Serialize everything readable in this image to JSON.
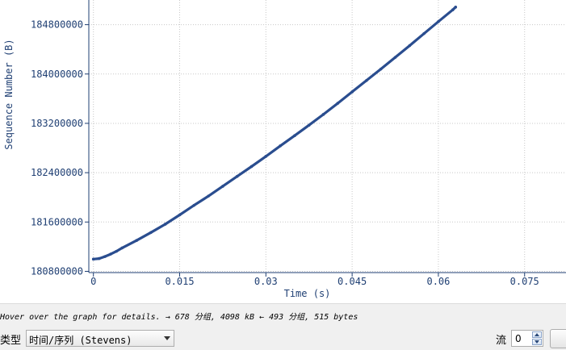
{
  "chart_data": {
    "type": "scatter",
    "xlabel": "Time (s)",
    "ylabel": "Sequence Number (B)",
    "x_ticks": [
      0,
      0.015,
      0.03,
      0.045,
      0.06,
      0.075
    ],
    "x_tick_labels": [
      "0",
      "0.015",
      "0.03",
      "0.045",
      "0.06",
      "0.075"
    ],
    "y_ticks": [
      180800000,
      181600000,
      182400000,
      183200000,
      184000000,
      184800000
    ],
    "y_tick_labels": [
      "180800000",
      "181600000",
      "182400000",
      "183200000",
      "184000000",
      "184800000"
    ],
    "xlim": [
      -0.0008,
      0.0822
    ],
    "ylim": [
      180780000,
      185200000
    ],
    "grid": true,
    "series": [
      {
        "color": "#2a4d8f",
        "points": [
          [
            0.0,
            180998000
          ],
          [
            0.001,
            181008000
          ],
          [
            0.002,
            181040000
          ],
          [
            0.003,
            181080000
          ],
          [
            0.004,
            181125000
          ],
          [
            0.005,
            181180000
          ],
          [
            0.0075,
            181300000
          ],
          [
            0.01,
            181430000
          ],
          [
            0.0125,
            181565000
          ],
          [
            0.015,
            181715000
          ],
          [
            0.0175,
            181870000
          ],
          [
            0.02,
            182020000
          ],
          [
            0.0225,
            182180000
          ],
          [
            0.025,
            182340000
          ],
          [
            0.0275,
            182500000
          ],
          [
            0.03,
            182665000
          ],
          [
            0.0325,
            182835000
          ],
          [
            0.035,
            183000000
          ],
          [
            0.0375,
            183170000
          ],
          [
            0.04,
            183345000
          ],
          [
            0.0425,
            183525000
          ],
          [
            0.045,
            183710000
          ],
          [
            0.0475,
            183895000
          ],
          [
            0.05,
            184080000
          ],
          [
            0.0525,
            184270000
          ],
          [
            0.055,
            184460000
          ],
          [
            0.0575,
            184655000
          ],
          [
            0.06,
            184850000
          ],
          [
            0.0625,
            185040000
          ],
          [
            0.063,
            185085000
          ]
        ]
      }
    ]
  },
  "status": {
    "text": "Hover over the graph for details. → 678 分组, 4098 kB ← 493 分组, 515 bytes"
  },
  "controls": {
    "type_label": "类型",
    "type_value": "时间/序列 (Stevens)",
    "stream_label": "流",
    "stream_value": "0"
  }
}
